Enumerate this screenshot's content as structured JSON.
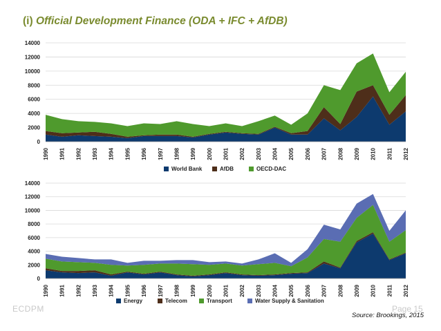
{
  "slide": {
    "title_prefix": "(i) ",
    "title_main": "Official Development Finance (ODA + IFC + AfDB)",
    "footer_left": "ECDPM",
    "footer_right": "Page 15",
    "source": "Source: Brookings, 2015"
  },
  "chart_data": [
    {
      "type": "area",
      "stacked": true,
      "x": [
        "1990",
        "1991",
        "1992",
        "1993",
        "1994",
        "1995",
        "1996",
        "1997",
        "1998",
        "1999",
        "2000",
        "2001",
        "2002",
        "2003",
        "2004",
        "2005",
        "2006",
        "2007",
        "2008",
        "2009",
        "2010",
        "2011",
        "2012"
      ],
      "ylim": [
        0,
        14000
      ],
      "yticks": [
        0,
        2000,
        4000,
        6000,
        8000,
        10000,
        12000,
        14000
      ],
      "grid": true,
      "legend_position": "bottom",
      "series": [
        {
          "name": "World Bank",
          "color": "#0d3a6e",
          "values": [
            1000,
            700,
            900,
            800,
            700,
            500,
            800,
            800,
            800,
            600,
            1000,
            1300,
            1100,
            1000,
            2000,
            1000,
            1000,
            3300,
            1600,
            3500,
            6400,
            2400,
            4300
          ]
        },
        {
          "name": "AfDB",
          "color": "#4e2e1a",
          "values": [
            500,
            500,
            400,
            600,
            400,
            200,
            100,
            200,
            200,
            100,
            100,
            100,
            100,
            100,
            100,
            200,
            500,
            1600,
            900,
            3600,
            1600,
            1400,
            2300
          ]
        },
        {
          "name": "OECD-DAC",
          "color": "#4f9a2d",
          "values": [
            2300,
            2000,
            1600,
            1400,
            1500,
            1500,
            1700,
            1500,
            1900,
            1800,
            1100,
            1200,
            1000,
            1800,
            1600,
            1200,
            2500,
            3100,
            4800,
            4000,
            4500,
            3200,
            3300
          ]
        }
      ]
    },
    {
      "type": "area",
      "stacked": true,
      "x": [
        "1990",
        "1991",
        "1992",
        "1993",
        "1994",
        "1995",
        "1996",
        "1997",
        "1998",
        "1999",
        "2000",
        "2001",
        "2002",
        "2003",
        "2004",
        "2005",
        "2006",
        "2007",
        "2008",
        "2009",
        "2010",
        "2011",
        "2012"
      ],
      "ylim": [
        0,
        14000
      ],
      "yticks": [
        0,
        2000,
        4000,
        6000,
        8000,
        10000,
        12000,
        14000
      ],
      "grid": true,
      "legend_position": "bottom",
      "series": [
        {
          "name": "Energy",
          "color": "#0d3a6e",
          "values": [
            1200,
            900,
            800,
            900,
            400,
            900,
            600,
            900,
            500,
            300,
            500,
            800,
            500,
            400,
            500,
            700,
            800,
            2200,
            1500,
            5300,
            6600,
            2700,
            3700
          ]
        },
        {
          "name": "Telecom",
          "color": "#4e2e1a",
          "values": [
            300,
            200,
            300,
            300,
            200,
            100,
            100,
            100,
            100,
            100,
            100,
            100,
            100,
            100,
            100,
            100,
            100,
            300,
            100,
            200,
            200,
            100,
            100
          ]
        },
        {
          "name": "Transport",
          "color": "#4f9a2d",
          "values": [
            1400,
            1400,
            1300,
            1100,
            1400,
            900,
            1300,
            1200,
            1600,
            1700,
            1400,
            1300,
            1300,
            1600,
            1700,
            1000,
            2200,
            3300,
            3800,
            3400,
            4000,
            2600,
            3300
          ]
        },
        {
          "name": "Water Supply & Sanitation",
          "color": "#5a6db3",
          "values": [
            700,
            700,
            600,
            500,
            800,
            400,
            600,
            400,
            500,
            600,
            400,
            300,
            300,
            700,
            1400,
            500,
            1200,
            2100,
            1800,
            2100,
            1600,
            1600,
            2900
          ]
        }
      ]
    }
  ]
}
